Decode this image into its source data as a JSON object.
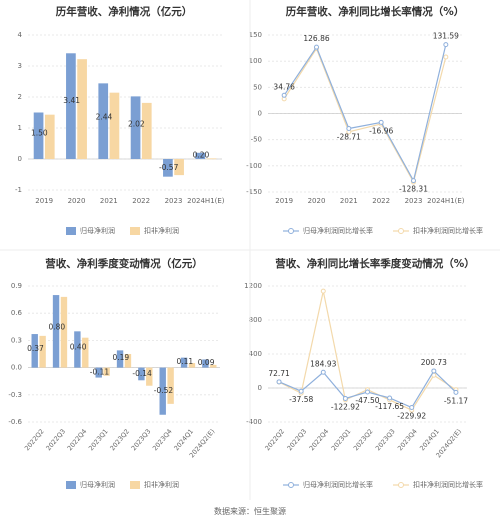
{
  "colors": {
    "blue": "#7b9fd3",
    "orange": "#f7d7a3",
    "blue_line": "#8fb0dc",
    "orange_line": "#f3d9ab",
    "axis_text": "#666666",
    "grid": "#e4e4e4",
    "title": "#333333"
  },
  "source_text": "数据来源：恒生聚源",
  "chart_data": [
    {
      "type": "bar",
      "title": "历年营收、净利情况（亿元）",
      "categories": [
        "2019",
        "2020",
        "2021",
        "2022",
        "2023",
        "2024H1(E)"
      ],
      "ylim": [
        -1,
        4
      ],
      "yticks": [
        "-1",
        "0",
        "1",
        "2",
        "3",
        "4"
      ],
      "series": [
        {
          "name": "归母净利润",
          "values": [
            1.5,
            3.41,
            2.44,
            2.02,
            -0.57,
            0.2
          ],
          "labels": [
            "1.50",
            "3.41",
            "2.44",
            "2.02",
            "-0.57",
            "0.20"
          ]
        },
        {
          "name": "扣非净利润",
          "values": [
            1.43,
            3.22,
            2.14,
            1.81,
            -0.52,
            0.02
          ]
        }
      ],
      "legend": "bottom",
      "grid": true
    },
    {
      "type": "line",
      "title": "历年营收、净利同比增长率情况（%）",
      "categories": [
        "2019",
        "2020",
        "2021",
        "2022",
        "2023",
        "2024H1(E)"
      ],
      "ylim": [
        -150,
        150
      ],
      "yticks": [
        "-150",
        "-100",
        "-50",
        "0",
        "50",
        "100",
        "150"
      ],
      "series": [
        {
          "name": "归母净利润同比增长率",
          "values": [
            34.76,
            126.86,
            -28.71,
            -16.96,
            -128.31,
            131.59
          ],
          "labels": [
            "34.76",
            "126.86",
            "-28.71",
            "-16.96",
            "-128.31",
            "131.59"
          ]
        },
        {
          "name": "扣非净利润同比增长率",
          "values": [
            28,
            124,
            -35,
            -20,
            -131,
            108
          ]
        }
      ],
      "legend": "bottom",
      "grid": true
    },
    {
      "type": "bar",
      "title": "营收、净利季度变动情况（亿元）",
      "categories": [
        "2022Q2",
        "2022Q3",
        "2022Q4",
        "2023Q1",
        "2023Q2",
        "2023Q3",
        "2023Q4",
        "2024Q1",
        "2024Q2(E)"
      ],
      "ylim": [
        -0.6,
        0.9
      ],
      "yticks": [
        "-0.6",
        "-0.3",
        "0.0",
        "0.3",
        "0.6",
        "0.9"
      ],
      "series": [
        {
          "name": "归母净利润",
          "values": [
            0.37,
            0.8,
            0.4,
            -0.11,
            0.19,
            -0.14,
            -0.52,
            0.11,
            0.09
          ],
          "labels": [
            "0.37",
            "0.80",
            "0.40",
            "-0.11",
            "0.19",
            "-0.14",
            "-0.52",
            "0.11",
            "0.09"
          ]
        },
        {
          "name": "扣非净利润",
          "values": [
            0.35,
            0.78,
            0.33,
            -0.09,
            0.15,
            -0.2,
            -0.4,
            0.05,
            0.03
          ]
        }
      ],
      "legend": "bottom",
      "grid": true
    },
    {
      "type": "line",
      "title": "营收、净利同比增长率季度变动情况（%）",
      "categories": [
        "2022Q2",
        "2022Q3",
        "2022Q4",
        "2023Q1",
        "2023Q2",
        "2023Q3",
        "2023Q4",
        "2024Q1",
        "2024Q2(E)"
      ],
      "ylim": [
        -400,
        1200
      ],
      "yticks": [
        "-400",
        "0",
        "400",
        "800",
        "1200"
      ],
      "series": [
        {
          "name": "归母净利润同比增长率",
          "values": [
            72.71,
            -37.58,
            184.93,
            -122.92,
            -47.5,
            -117.65,
            -229.92,
            200.73,
            -51.17
          ],
          "labels": [
            "72.71",
            "-37.58",
            "184.93",
            "-122.92",
            "-47.50",
            "-117.65",
            "-229.92",
            "200.73",
            "-51.17"
          ]
        },
        {
          "name": "扣非净利润同比增长率",
          "values": [
            70,
            -60,
            1140,
            -140,
            -20,
            -140,
            -260,
            150,
            -20
          ]
        }
      ],
      "legend": "bottom",
      "grid": true
    }
  ]
}
